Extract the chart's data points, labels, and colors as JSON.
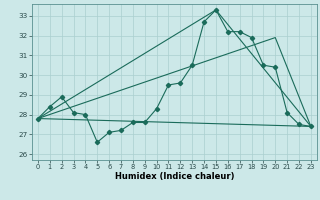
{
  "xlabel": "Humidex (Indice chaleur)",
  "bg_color": "#cce8e8",
  "line_color": "#1a6b5a",
  "grid_color": "#aacfcf",
  "ylim": [
    25.7,
    33.6
  ],
  "xlim": [
    -0.5,
    23.5
  ],
  "yticks": [
    26,
    27,
    28,
    29,
    30,
    31,
    32,
    33
  ],
  "xticks": [
    0,
    1,
    2,
    3,
    4,
    5,
    6,
    7,
    8,
    9,
    10,
    11,
    12,
    13,
    14,
    15,
    16,
    17,
    18,
    19,
    20,
    21,
    22,
    23
  ],
  "line1_x": [
    0,
    1,
    2,
    3,
    4,
    5,
    6,
    7,
    8,
    9,
    10,
    11,
    12,
    13,
    14,
    15,
    16,
    17,
    18,
    19,
    20,
    21,
    22,
    23
  ],
  "line1_y": [
    27.8,
    28.4,
    28.9,
    28.1,
    28.0,
    26.6,
    27.1,
    27.2,
    27.6,
    27.6,
    28.3,
    29.5,
    29.6,
    30.5,
    32.7,
    33.3,
    32.2,
    32.2,
    31.9,
    30.5,
    30.4,
    28.1,
    27.5,
    27.4
  ],
  "line2_x": [
    0,
    15,
    23
  ],
  "line2_y": [
    27.8,
    33.3,
    27.4
  ],
  "line3_x": [
    0,
    20,
    23
  ],
  "line3_y": [
    27.8,
    31.9,
    27.4
  ],
  "line4_x": [
    0,
    23
  ],
  "line4_y": [
    27.8,
    27.4
  ]
}
